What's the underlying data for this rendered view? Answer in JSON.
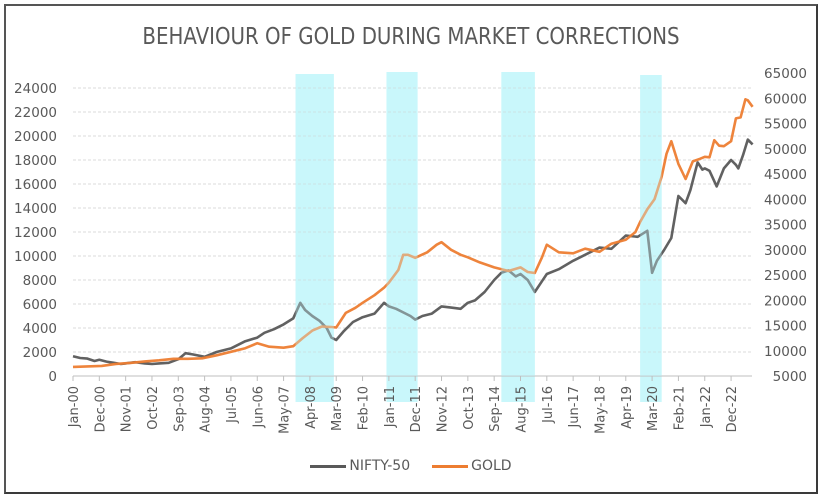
{
  "chart_data": {
    "type": "line",
    "title": "BEHAVIOUR OF GOLD DURING MARKET CORRECTIONS",
    "xlabel": "",
    "ylabel_left": "",
    "ylabel_right": "",
    "x_unit": "months since Jan-00",
    "x_tick_labels": [
      "Jan-00",
      "Dec-00",
      "Nov-01",
      "Oct-02",
      "Sep-03",
      "Aug-04",
      "Jul-05",
      "Jun-06",
      "May-07",
      "Apr-08",
      "Mar-09",
      "Feb-10",
      "Jan-11",
      "Dec-11",
      "Nov-12",
      "Oct-13",
      "Sep-14",
      "Aug-15",
      "Jul-16",
      "Jun-17",
      "May-18",
      "Apr-19",
      "Mar-20",
      "Feb-21",
      "Jan-22",
      "Dec-22"
    ],
    "x_tick_step_months": 11,
    "xlim": [
      0,
      284
    ],
    "y_left": {
      "ylim": [
        0,
        26000
      ],
      "ticks": [
        "0",
        "2000",
        "4000",
        "6000",
        "8000",
        "10000",
        "12000",
        "14000",
        "16000",
        "18000",
        "20000",
        "22000",
        "24000"
      ]
    },
    "y_right": {
      "ylim": [
        5000,
        65000
      ],
      "ticks": [
        "5000",
        "10000",
        "15000",
        "20000",
        "25000",
        "30000",
        "35000",
        "40000",
        "45000",
        "50000",
        "55000",
        "60000",
        "65000"
      ]
    },
    "grid": true,
    "legend_position": "bottom",
    "correction_bands": [
      {
        "start": 93,
        "end": 109
      },
      {
        "start": 131,
        "end": 144
      },
      {
        "start": 179,
        "end": 193
      },
      {
        "start": 237,
        "end": 246
      }
    ],
    "series": [
      {
        "name": "NIFTY-50",
        "axis": "left",
        "color": "#595959",
        "x": [
          0,
          3,
          6,
          9,
          11,
          14,
          17,
          20,
          22,
          26,
          30,
          33,
          36,
          40,
          44,
          47,
          50,
          55,
          60,
          66,
          72,
          77,
          80,
          84,
          88,
          92,
          95,
          97,
          100,
          103,
          106,
          108,
          110,
          113,
          117,
          121,
          126,
          130,
          132,
          135,
          138,
          141,
          143,
          146,
          150,
          154,
          158,
          162,
          165,
          168,
          172,
          176,
          179,
          182,
          185,
          187,
          190,
          193,
          196,
          198,
          203,
          209,
          214,
          220,
          225,
          231,
          236,
          240,
          242,
          244,
          247,
          250,
          253,
          256,
          258,
          261,
          263,
          264,
          266,
          269,
          272,
          275,
          277,
          278,
          280,
          282,
          284
        ],
        "y": [
          1650,
          1500,
          1450,
          1250,
          1350,
          1200,
          1100,
          1000,
          1050,
          1150,
          1050,
          1000,
          1050,
          1100,
          1400,
          1900,
          1800,
          1600,
          2000,
          2300,
          2900,
          3200,
          3600,
          3900,
          4300,
          4800,
          6100,
          5500,
          5000,
          4600,
          4000,
          3200,
          3000,
          3700,
          4500,
          4900,
          5200,
          6100,
          5800,
          5600,
          5300,
          5000,
          4700,
          5000,
          5200,
          5800,
          5700,
          5600,
          6100,
          6300,
          7000,
          8000,
          8600,
          8800,
          8300,
          8500,
          8000,
          7000,
          7900,
          8500,
          8900,
          9600,
          10100,
          10700,
          10600,
          11700,
          11600,
          12100,
          8600,
          9600,
          10500,
          11500,
          15000,
          14400,
          15500,
          17800,
          17200,
          17300,
          17100,
          15800,
          17300,
          18000,
          17600,
          17300,
          18400,
          19700,
          19300
        ]
      },
      {
        "name": "GOLD",
        "axis": "right",
        "color": "#ED7D31",
        "x": [
          0,
          6,
          12,
          18,
          24,
          30,
          36,
          42,
          48,
          54,
          60,
          66,
          72,
          77,
          82,
          88,
          92,
          96,
          100,
          104,
          108,
          110,
          114,
          118,
          121,
          126,
          130,
          132,
          136,
          138,
          140,
          143,
          148,
          152,
          154,
          158,
          162,
          165,
          170,
          176,
          182,
          187,
          190,
          193,
          196,
          198,
          203,
          209,
          214,
          220,
          225,
          231,
          235,
          237,
          240,
          243,
          246,
          248,
          250,
          253,
          256,
          259,
          262,
          264,
          266,
          268,
          270,
          272,
          275,
          277,
          279,
          281,
          282,
          284
        ],
        "y": [
          6800,
          6900,
          7000,
          7400,
          7600,
          7900,
          8100,
          8400,
          8400,
          8500,
          9100,
          9800,
          10500,
          11500,
          10800,
          10600,
          10900,
          12500,
          14000,
          14800,
          14700,
          14600,
          17500,
          18500,
          19500,
          21000,
          22500,
          23500,
          26000,
          29000,
          29000,
          28400,
          29500,
          31000,
          31500,
          30000,
          29000,
          28500,
          27500,
          26500,
          25800,
          26500,
          25600,
          25400,
          28500,
          31000,
          29500,
          29300,
          30200,
          29600,
          31200,
          32000,
          33500,
          35500,
          38000,
          40000,
          44500,
          49000,
          51500,
          47000,
          44000,
          47500,
          48000,
          48400,
          48300,
          51700,
          50600,
          50500,
          51500,
          56000,
          56200,
          59800,
          59600,
          58300
        ]
      }
    ]
  },
  "legend": [
    {
      "label": "NIFTY-50",
      "color": "#595959"
    },
    {
      "label": "GOLD",
      "color": "#ED7D31"
    }
  ],
  "colors": {
    "band": "#C9F7FB",
    "grid": "#D0D0D0",
    "axis": "#BFBFBF",
    "text": "#595959"
  }
}
